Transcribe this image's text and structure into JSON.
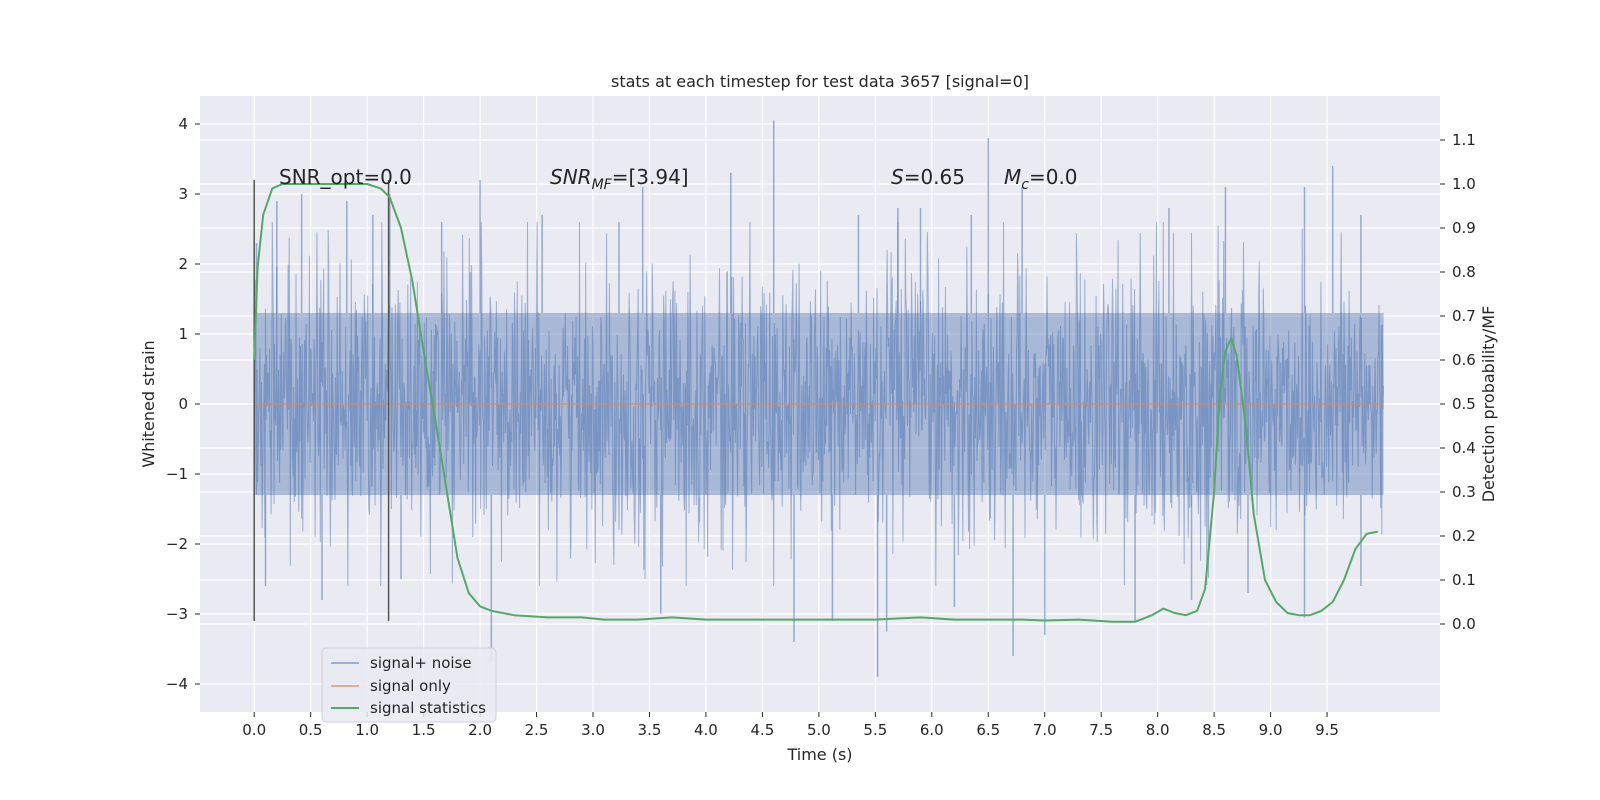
{
  "chart_data": {
    "type": "line",
    "title": "stats at each timestep for test data 3657 [signal=0]",
    "xlabel": "Time (s)",
    "ylabel_left": "Whitened strain",
    "ylabel_right": "Detection probability/MF",
    "xlim": [
      -0.48,
      10.5
    ],
    "ylim_left": [
      -4.4,
      4.4
    ],
    "ylim_right": [
      -0.2,
      1.2
    ],
    "x_ticks": [
      0.0,
      0.5,
      1.0,
      1.5,
      2.0,
      2.5,
      3.0,
      3.5,
      4.0,
      4.5,
      5.0,
      5.5,
      6.0,
      6.5,
      7.0,
      7.5,
      8.0,
      8.5,
      9.0,
      9.5
    ],
    "x_tick_labels": [
      "0.0",
      "0.5",
      "1.0",
      "1.5",
      "2.0",
      "2.5",
      "3.0",
      "3.5",
      "4.0",
      "4.5",
      "5.0",
      "5.5",
      "6.0",
      "6.5",
      "7.0",
      "7.5",
      "8.0",
      "8.5",
      "9.0",
      "9.5"
    ],
    "y_left_ticks": [
      -4,
      -3,
      -2,
      -1,
      0,
      1,
      2,
      3,
      4
    ],
    "y_left_tick_labels": [
      "−4",
      "−3",
      "−2",
      "−1",
      "0",
      "1",
      "2",
      "3",
      "4"
    ],
    "y_right_ticks": [
      0.0,
      0.1,
      0.2,
      0.3,
      0.4,
      0.5,
      0.6,
      0.7,
      0.8,
      0.9,
      1.0,
      1.1
    ],
    "y_right_tick_labels": [
      "0.0",
      "0.1",
      "0.2",
      "0.3",
      "0.4",
      "0.5",
      "0.6",
      "0.7",
      "0.8",
      "0.9",
      "1.0",
      "1.1"
    ],
    "grid": true,
    "legend": {
      "placement": "lower-left",
      "entries": [
        {
          "label": "signal+ noise",
          "color": "#4c72b0"
        },
        {
          "label": "signal only",
          "color": "#dd8452"
        },
        {
          "label": "signal statistics",
          "color": "#55a868"
        }
      ]
    },
    "annotations": {
      "snr_opt": "SNR_opt=0.0",
      "snr_mf_main": "SNR",
      "snr_mf_sub": "MF",
      "snr_mf_value": "=[3.94]",
      "s_label": "S",
      "s_value": "=0.65",
      "mc_main": "M",
      "mc_sub": "c",
      "mc_value": "=0.0"
    },
    "vertical_markers": [
      {
        "x": 0.0,
        "y_range": [
          -3.1,
          3.2
        ]
      },
      {
        "x": 1.19,
        "y_range": [
          -3.1,
          3.2
        ]
      }
    ],
    "series": [
      {
        "name": "signal+ noise",
        "axis": "left",
        "color": "#4c72b0",
        "x_range": [
          0.0,
          10.0
        ],
        "envelope": {
          "typical_amplitude": 2.4,
          "bulk_amplitude": 1.3
        },
        "peaks": [
          {
            "x": 0.02,
            "y": 2.3
          },
          {
            "x": 0.2,
            "y": 2.9
          },
          {
            "x": 0.42,
            "y": 3.0
          },
          {
            "x": 0.82,
            "y": 2.9
          },
          {
            "x": 1.05,
            "y": 2.7
          },
          {
            "x": 1.2,
            "y": 3.0
          },
          {
            "x": 1.66,
            "y": 2.6
          },
          {
            "x": 2.0,
            "y": 3.2
          },
          {
            "x": 2.55,
            "y": 2.7
          },
          {
            "x": 3.23,
            "y": 2.6
          },
          {
            "x": 3.44,
            "y": 3.1
          },
          {
            "x": 4.22,
            "y": 3.3
          },
          {
            "x": 4.6,
            "y": 4.05
          },
          {
            "x": 5.35,
            "y": 2.7
          },
          {
            "x": 5.7,
            "y": 2.8
          },
          {
            "x": 5.9,
            "y": 2.8
          },
          {
            "x": 6.35,
            "y": 2.7
          },
          {
            "x": 6.5,
            "y": 3.8
          },
          {
            "x": 6.8,
            "y": 3.1
          },
          {
            "x": 8.1,
            "y": 2.8
          },
          {
            "x": 8.6,
            "y": 3.1
          },
          {
            "x": 9.3,
            "y": 3.1
          },
          {
            "x": 9.55,
            "y": 3.4
          },
          {
            "x": 9.8,
            "y": 2.7
          },
          {
            "x": 0.1,
            "y": -2.6
          },
          {
            "x": 0.6,
            "y": -2.8
          },
          {
            "x": 1.3,
            "y": -2.5
          },
          {
            "x": 2.1,
            "y": -3.7
          },
          {
            "x": 3.6,
            "y": -3.0
          },
          {
            "x": 4.78,
            "y": -3.4
          },
          {
            "x": 5.12,
            "y": -3.1
          },
          {
            "x": 5.52,
            "y": -3.9
          },
          {
            "x": 5.6,
            "y": -3.25
          },
          {
            "x": 6.2,
            "y": -2.9
          },
          {
            "x": 6.72,
            "y": -3.6
          },
          {
            "x": 7.0,
            "y": -3.3
          },
          {
            "x": 7.8,
            "y": -3.1
          },
          {
            "x": 8.3,
            "y": -2.8
          },
          {
            "x": 8.8,
            "y": -2.7
          },
          {
            "x": 9.3,
            "y": -3.05
          },
          {
            "x": 9.8,
            "y": -2.6
          }
        ]
      },
      {
        "name": "signal only",
        "axis": "left",
        "color": "#dd8452",
        "x": [
          0.0,
          10.0
        ],
        "y": [
          0.0,
          0.0
        ]
      },
      {
        "name": "signal statistics",
        "axis": "right",
        "color": "#55a868",
        "x": [
          0.0,
          0.03,
          0.08,
          0.16,
          0.25,
          0.5,
          0.8,
          1.0,
          1.12,
          1.2,
          1.3,
          1.4,
          1.5,
          1.6,
          1.7,
          1.8,
          1.9,
          2.0,
          2.1,
          2.3,
          2.6,
          2.9,
          3.1,
          3.4,
          3.7,
          4.0,
          4.5,
          5.0,
          5.5,
          5.9,
          6.2,
          6.5,
          6.8,
          7.0,
          7.3,
          7.6,
          7.8,
          7.95,
          8.05,
          8.15,
          8.25,
          8.35,
          8.42,
          8.5,
          8.55,
          8.6,
          8.65,
          8.7,
          8.78,
          8.85,
          8.95,
          9.05,
          9.15,
          9.25,
          9.35,
          9.45,
          9.55,
          9.65,
          9.75,
          9.85,
          9.95
        ],
        "y": [
          0.6,
          0.81,
          0.93,
          0.99,
          1.0,
          1.0,
          1.0,
          1.0,
          0.99,
          0.97,
          0.9,
          0.78,
          0.62,
          0.47,
          0.31,
          0.15,
          0.07,
          0.04,
          0.03,
          0.02,
          0.015,
          0.015,
          0.01,
          0.01,
          0.015,
          0.01,
          0.01,
          0.01,
          0.01,
          0.015,
          0.01,
          0.01,
          0.01,
          0.008,
          0.01,
          0.005,
          0.005,
          0.02,
          0.035,
          0.025,
          0.02,
          0.03,
          0.08,
          0.3,
          0.52,
          0.62,
          0.65,
          0.61,
          0.45,
          0.25,
          0.1,
          0.05,
          0.025,
          0.02,
          0.02,
          0.03,
          0.05,
          0.1,
          0.17,
          0.205,
          0.21
        ]
      }
    ]
  }
}
